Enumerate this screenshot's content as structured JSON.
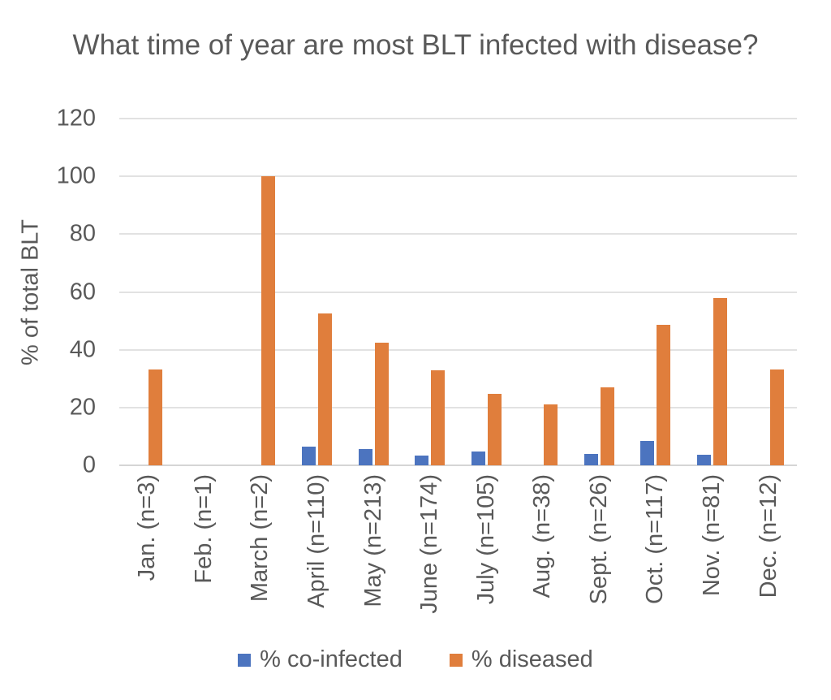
{
  "chart_data": {
    "type": "bar",
    "title": "What time of year are most BLT infected with disease?",
    "ylabel": "% of total BLT",
    "xlabel": "",
    "ylim": [
      0,
      120
    ],
    "yticks": [
      0,
      20,
      40,
      60,
      80,
      100,
      120
    ],
    "grid": true,
    "legend_position": "bottom",
    "categories": [
      "Jan. (n=3)",
      "Feb. (n=1)",
      "March (n=2)",
      "April (n=110)",
      "May (n=213)",
      "June (n=174)",
      "July (n=105)",
      "Aug. (n=38)",
      "Sept. (n=26)",
      "Oct. (n=117)",
      "Nov. (n=81)",
      "Dec. (n=12)"
    ],
    "series": [
      {
        "name": "% co-infected",
        "color": "#4C74BF",
        "values": [
          0,
          0,
          0,
          6.4,
          5.6,
          3.4,
          4.8,
          0,
          3.8,
          8.5,
          3.7,
          0
        ]
      },
      {
        "name": "% diseased",
        "color": "#E07E3C",
        "values": [
          33.3,
          0,
          100,
          52.6,
          42.3,
          32.8,
          24.8,
          21.1,
          26.9,
          48.7,
          58,
          33.3
        ]
      }
    ],
    "colors": {
      "text": "#595959",
      "gridline": "#E2E2E2",
      "axis_line": "#D5D5D5"
    }
  }
}
